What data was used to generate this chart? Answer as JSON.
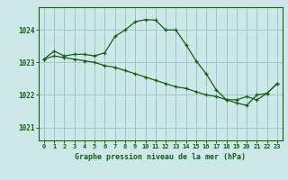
{
  "title": "Graphe pression niveau de la mer (hPa)",
  "background_color": "#cce8e8",
  "line_color": "#1a5c1a",
  "grid_color": "#a0c8c8",
  "x_labels": [
    "0",
    "1",
    "2",
    "3",
    "4",
    "5",
    "6",
    "7",
    "8",
    "9",
    "10",
    "11",
    "12",
    "13",
    "14",
    "15",
    "16",
    "17",
    "18",
    "19",
    "20",
    "21",
    "22",
    "23"
  ],
  "y_ticks": [
    1021,
    1022,
    1023,
    1024
  ],
  "ylim": [
    1020.6,
    1024.7
  ],
  "series1_x": [
    0,
    1,
    2,
    3,
    4,
    5,
    6,
    7,
    8,
    9,
    10,
    11,
    12,
    13,
    14,
    15,
    16,
    17,
    18,
    19,
    20,
    21,
    22,
    23
  ],
  "series1_y": [
    1023.1,
    1023.35,
    1023.2,
    1023.25,
    1023.25,
    1023.2,
    1023.3,
    1023.8,
    1024.0,
    1024.25,
    1024.32,
    1024.3,
    1024.0,
    1024.0,
    1023.55,
    1023.05,
    1022.65,
    1022.15,
    1021.85,
    1021.85,
    1021.95,
    1021.85,
    1022.05,
    1022.35
  ],
  "series2_x": [
    0,
    1,
    2,
    3,
    4,
    5,
    6,
    7,
    8,
    9,
    10,
    11,
    12,
    13,
    14,
    15,
    16,
    17,
    18,
    19,
    20,
    21,
    22,
    23
  ],
  "series2_y": [
    1023.1,
    1023.2,
    1023.15,
    1023.1,
    1023.05,
    1023.0,
    1022.9,
    1022.85,
    1022.75,
    1022.65,
    1022.55,
    1022.45,
    1022.35,
    1022.25,
    1022.2,
    1022.1,
    1022.0,
    1021.95,
    1021.85,
    1021.75,
    1021.68,
    1022.0,
    1022.05,
    1022.35
  ]
}
